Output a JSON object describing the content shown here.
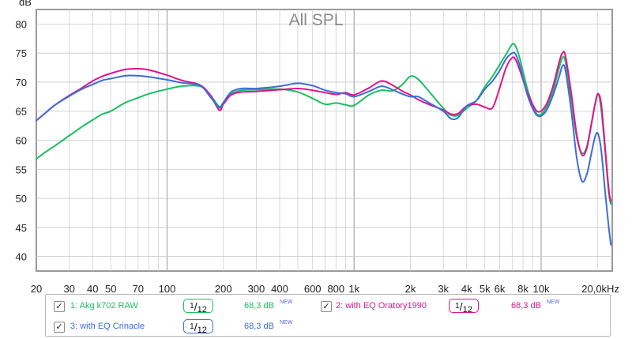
{
  "chart_data": {
    "type": "line",
    "title": "All SPL",
    "ylabel": "dB",
    "x_scale": "log",
    "xlim": [
      20,
      24000
    ],
    "ylim": [
      37.5,
      82.5
    ],
    "grid": true,
    "y_ticks": [
      "40",
      "45",
      "50",
      "55",
      "60",
      "65",
      "70",
      "75",
      "80"
    ],
    "x_tick_labels": [
      {
        "value": 20,
        "label": "20"
      },
      {
        "value": 30,
        "label": "30"
      },
      {
        "value": 40,
        "label": "40"
      },
      {
        "value": 50,
        "label": "50"
      },
      {
        "value": 70,
        "label": "70"
      },
      {
        "value": 100,
        "label": "100"
      },
      {
        "value": 200,
        "label": "200"
      },
      {
        "value": 300,
        "label": "300"
      },
      {
        "value": 400,
        "label": "400"
      },
      {
        "value": 600,
        "label": "600"
      },
      {
        "value": 800,
        "label": "800"
      },
      {
        "value": 1000,
        "label": "1k"
      },
      {
        "value": 2000,
        "label": "2k"
      },
      {
        "value": 3000,
        "label": "3k"
      },
      {
        "value": 4000,
        "label": "4k"
      },
      {
        "value": 5000,
        "label": "5k"
      },
      {
        "value": 6000,
        "label": "6k"
      },
      {
        "value": 8000,
        "label": "8k"
      },
      {
        "value": 10000,
        "label": "10k"
      },
      {
        "value": 20000,
        "label": "20,0kHz"
      }
    ],
    "series": [
      {
        "name": "1: Akg k702 RAW",
        "color": "#18c060",
        "points": [
          [
            20,
            56.8
          ],
          [
            22,
            57.8
          ],
          [
            25,
            59.0
          ],
          [
            30,
            60.8
          ],
          [
            35,
            62.3
          ],
          [
            40,
            63.5
          ],
          [
            45,
            64.5
          ],
          [
            50,
            65.0
          ],
          [
            60,
            66.5
          ],
          [
            70,
            67.3
          ],
          [
            80,
            68.0
          ],
          [
            100,
            68.8
          ],
          [
            120,
            69.3
          ],
          [
            150,
            69.3
          ],
          [
            170,
            67.8
          ],
          [
            190,
            65.8
          ],
          [
            200,
            66.5
          ],
          [
            220,
            68.0
          ],
          [
            250,
            68.6
          ],
          [
            300,
            68.7
          ],
          [
            400,
            68.8
          ],
          [
            500,
            68.3
          ],
          [
            600,
            67.2
          ],
          [
            700,
            66.2
          ],
          [
            800,
            66.4
          ],
          [
            900,
            66.1
          ],
          [
            1000,
            66.0
          ],
          [
            1200,
            67.8
          ],
          [
            1400,
            68.6
          ],
          [
            1600,
            68.5
          ],
          [
            1800,
            69.5
          ],
          [
            2000,
            71.0
          ],
          [
            2200,
            70.5
          ],
          [
            2500,
            68.5
          ],
          [
            3000,
            65.5
          ],
          [
            3300,
            64.3
          ],
          [
            3600,
            64.3
          ],
          [
            4000,
            65.5
          ],
          [
            4500,
            66.8
          ],
          [
            5000,
            69.2
          ],
          [
            5500,
            71.0
          ],
          [
            6000,
            73.0
          ],
          [
            6500,
            74.8
          ],
          [
            7000,
            76.5
          ],
          [
            7300,
            76.2
          ],
          [
            7700,
            74.0
          ],
          [
            8500,
            68.5
          ],
          [
            9500,
            64.5
          ],
          [
            10500,
            65.3
          ],
          [
            11500,
            68.2
          ],
          [
            12500,
            72.5
          ],
          [
            13000,
            74.2
          ],
          [
            13500,
            73.5
          ],
          [
            14500,
            67.0
          ],
          [
            15500,
            60.5
          ],
          [
            16500,
            57.8
          ],
          [
            17500,
            58.8
          ],
          [
            18500,
            62.5
          ],
          [
            19500,
            66.5
          ],
          [
            20200,
            68.0
          ],
          [
            21000,
            65.0
          ],
          [
            22000,
            58.0
          ],
          [
            23000,
            51.0
          ],
          [
            23600,
            49.0
          ]
        ]
      },
      {
        "name": "2: with EQ Oratory1990",
        "color": "#e0148c",
        "points": [
          [
            20,
            63.4
          ],
          [
            22,
            64.5
          ],
          [
            25,
            66.0
          ],
          [
            30,
            67.7
          ],
          [
            35,
            69.0
          ],
          [
            40,
            70.2
          ],
          [
            45,
            71.0
          ],
          [
            50,
            71.5
          ],
          [
            60,
            72.2
          ],
          [
            70,
            72.3
          ],
          [
            80,
            72.1
          ],
          [
            100,
            71.2
          ],
          [
            120,
            70.3
          ],
          [
            150,
            69.5
          ],
          [
            170,
            67.8
          ],
          [
            190,
            65.2
          ],
          [
            200,
            66.2
          ],
          [
            220,
            67.8
          ],
          [
            250,
            68.3
          ],
          [
            300,
            68.4
          ],
          [
            400,
            68.7
          ],
          [
            500,
            68.9
          ],
          [
            600,
            68.6
          ],
          [
            700,
            68.2
          ],
          [
            800,
            67.9
          ],
          [
            900,
            68.2
          ],
          [
            1000,
            67.8
          ],
          [
            1200,
            69.0
          ],
          [
            1400,
            70.2
          ],
          [
            1600,
            69.5
          ],
          [
            1800,
            68.5
          ],
          [
            2000,
            67.8
          ],
          [
            2200,
            67.0
          ],
          [
            2500,
            66.2
          ],
          [
            3000,
            65.2
          ],
          [
            3300,
            64.5
          ],
          [
            3600,
            64.6
          ],
          [
            4000,
            65.9
          ],
          [
            4500,
            66.2
          ],
          [
            5000,
            65.7
          ],
          [
            5500,
            65.6
          ],
          [
            6000,
            69.0
          ],
          [
            6500,
            72.5
          ],
          [
            7000,
            74.2
          ],
          [
            7300,
            73.9
          ],
          [
            7700,
            72.0
          ],
          [
            8500,
            68.0
          ],
          [
            9500,
            65.0
          ],
          [
            10500,
            65.8
          ],
          [
            11500,
            69.0
          ],
          [
            12500,
            73.5
          ],
          [
            13000,
            75.0
          ],
          [
            13500,
            74.5
          ],
          [
            14500,
            68.0
          ],
          [
            15500,
            61.0
          ],
          [
            16500,
            57.5
          ],
          [
            17500,
            58.5
          ],
          [
            18500,
            62.5
          ],
          [
            19500,
            66.5
          ],
          [
            20200,
            68.0
          ],
          [
            21000,
            66.0
          ],
          [
            22000,
            58.5
          ],
          [
            23000,
            51.5
          ],
          [
            23600,
            49.5
          ]
        ]
      },
      {
        "name": "3: with EQ Crinacle",
        "color": "#3e6cd6",
        "points": [
          [
            20,
            63.4
          ],
          [
            22,
            64.5
          ],
          [
            25,
            66.0
          ],
          [
            30,
            67.6
          ],
          [
            35,
            68.8
          ],
          [
            40,
            69.6
          ],
          [
            45,
            70.3
          ],
          [
            50,
            70.6
          ],
          [
            60,
            71.1
          ],
          [
            70,
            71.1
          ],
          [
            80,
            70.9
          ],
          [
            100,
            70.4
          ],
          [
            120,
            69.9
          ],
          [
            150,
            69.4
          ],
          [
            170,
            67.5
          ],
          [
            190,
            65.6
          ],
          [
            200,
            66.5
          ],
          [
            220,
            68.3
          ],
          [
            250,
            68.9
          ],
          [
            300,
            68.9
          ],
          [
            400,
            69.3
          ],
          [
            500,
            69.8
          ],
          [
            600,
            69.4
          ],
          [
            700,
            68.6
          ],
          [
            800,
            68.2
          ],
          [
            900,
            68.0
          ],
          [
            1000,
            67.5
          ],
          [
            1200,
            68.4
          ],
          [
            1400,
            69.3
          ],
          [
            1600,
            68.7
          ],
          [
            1800,
            68.0
          ],
          [
            2000,
            67.5
          ],
          [
            2200,
            67.5
          ],
          [
            2500,
            66.5
          ],
          [
            3000,
            65.0
          ],
          [
            3300,
            63.7
          ],
          [
            3600,
            63.9
          ],
          [
            4000,
            65.9
          ],
          [
            4500,
            66.8
          ],
          [
            5000,
            68.8
          ],
          [
            5500,
            70.2
          ],
          [
            6000,
            72.0
          ],
          [
            6500,
            74.0
          ],
          [
            7000,
            75.0
          ],
          [
            7300,
            74.8
          ],
          [
            7700,
            72.8
          ],
          [
            8500,
            67.5
          ],
          [
            9500,
            64.3
          ],
          [
            10500,
            64.8
          ],
          [
            11500,
            67.5
          ],
          [
            12500,
            71.0
          ],
          [
            13000,
            72.8
          ],
          [
            13500,
            72.0
          ],
          [
            14500,
            65.0
          ],
          [
            15500,
            57.0
          ],
          [
            16500,
            53.0
          ],
          [
            17500,
            54.0
          ],
          [
            18500,
            57.5
          ],
          [
            19500,
            60.8
          ],
          [
            20200,
            61.0
          ],
          [
            21000,
            58.0
          ],
          [
            22000,
            51.0
          ],
          [
            23000,
            45.0
          ],
          [
            23600,
            42.0
          ]
        ]
      }
    ]
  },
  "legend": {
    "items": [
      {
        "label": "1: Akg k702 RAW",
        "checked": "✓",
        "smoothing": "1/12",
        "value": "68,3 dB",
        "badge": "NEW",
        "color": "#18c060"
      },
      {
        "label": "2: with EQ Oratory1990",
        "checked": "✓",
        "smoothing": "1/12",
        "value": "68,3 dB",
        "badge": "NEW",
        "color": "#e0148c"
      },
      {
        "label": "3: with EQ Crinacle",
        "checked": "✓",
        "smoothing": "1/12",
        "value": "68,3 dB",
        "badge": "NEW",
        "color": "#3e6cd6"
      }
    ]
  }
}
